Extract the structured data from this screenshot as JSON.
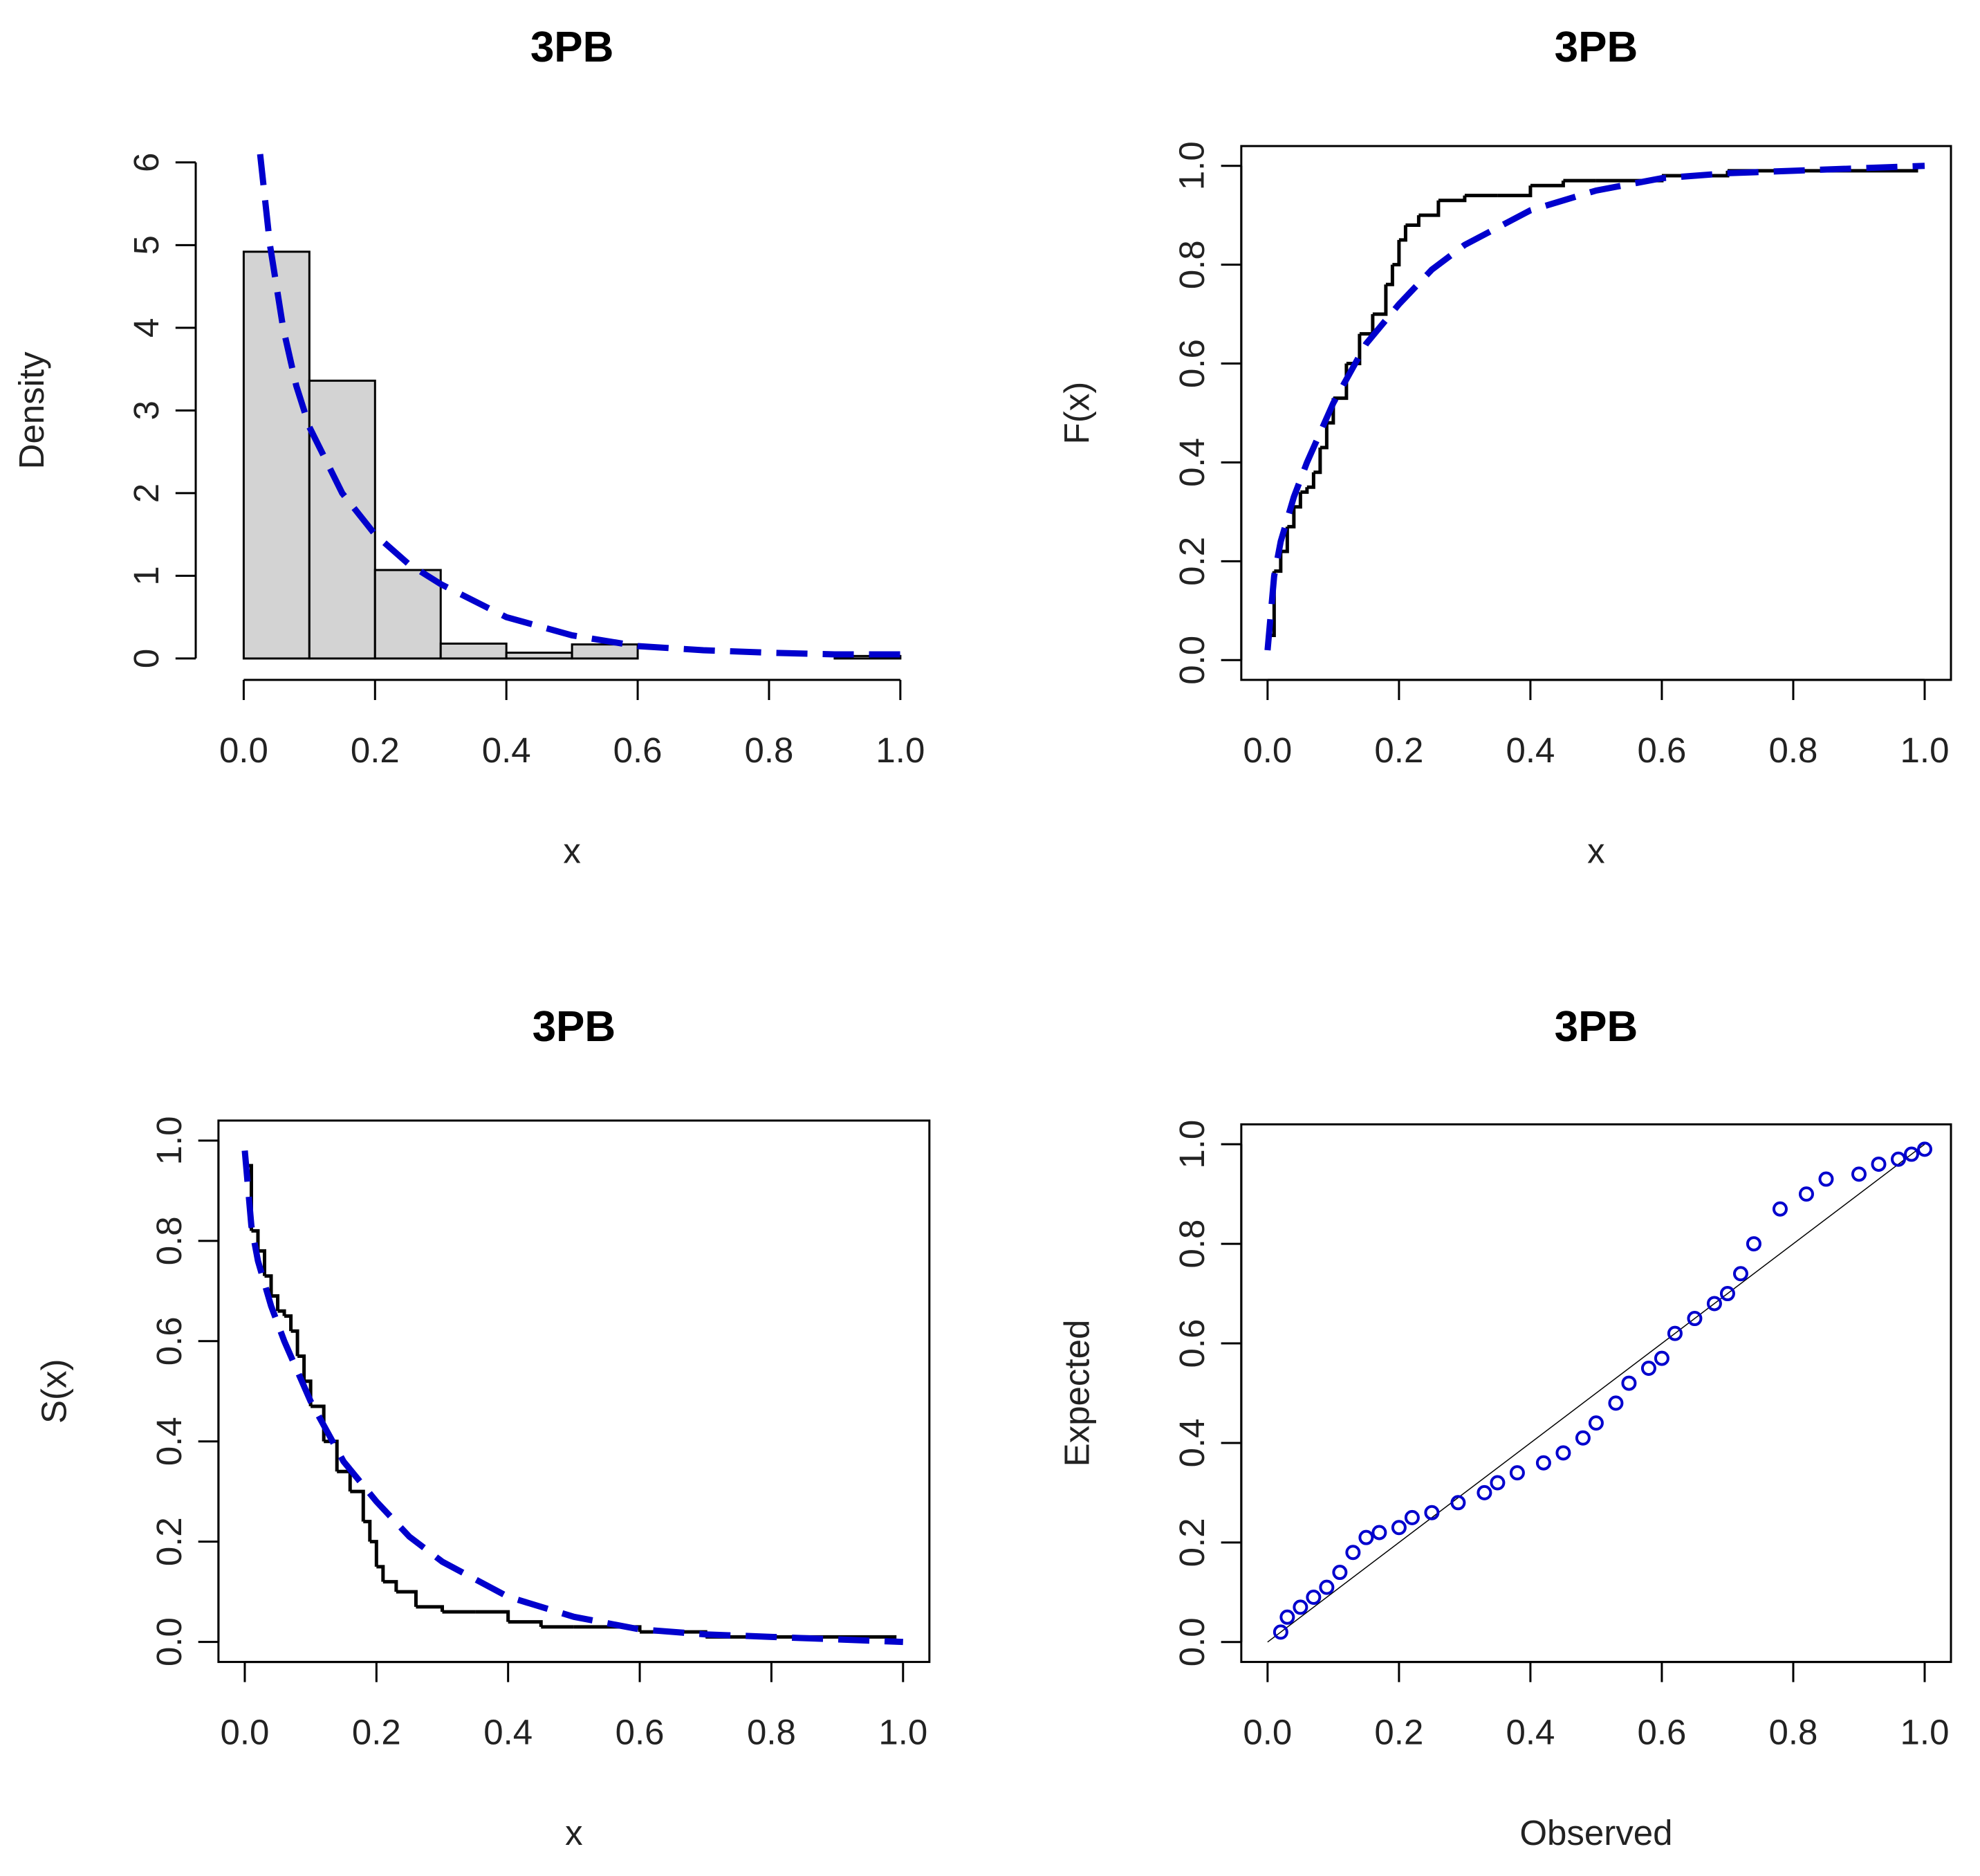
{
  "chart_data": [
    {
      "type": "histogram",
      "title": "3PB",
      "x_label": "x",
      "y_label": "Density",
      "bins": [
        0,
        0.1,
        0.2,
        0.3,
        0.4,
        0.5,
        0.6,
        0.7,
        0.8,
        0.9,
        1.0
      ],
      "values": [
        4.92,
        3.36,
        1.07,
        0.18,
        0.07,
        0.17,
        0,
        0,
        0,
        0.03
      ],
      "color": "#d3d3d3",
      "series": [
        {
          "color": "#0000cd",
          "style": "dashed",
          "x": [
            0.025,
            0.04,
            0.06,
            0.08,
            0.1,
            0.15,
            0.2,
            0.25,
            0.3,
            0.4,
            0.5,
            0.6,
            0.7,
            0.8,
            0.9,
            1.0
          ],
          "values": [
            6.1,
            5.0,
            4.0,
            3.3,
            2.8,
            2.0,
            1.5,
            1.15,
            0.9,
            0.5,
            0.28,
            0.15,
            0.1,
            0.07,
            0.05,
            0.05
          ]
        }
      ],
      "xlim": [
        0,
        1
      ],
      "ylim": [
        0,
        6
      ],
      "xticks": [
        {
          "value": 0,
          "label": "0.0"
        },
        0.2,
        0.4,
        0.6,
        0.8,
        {
          "value": 1,
          "label": "1.0"
        }
      ],
      "yticks": [
        0,
        1,
        2,
        3,
        4,
        5,
        6
      ]
    },
    {
      "type": "line",
      "title": "3PB",
      "x_label": "x",
      "y_label": "F(x)",
      "series": [
        {
          "color": "#000000",
          "style": "step",
          "x": [
            0.005,
            0.01,
            0.02,
            0.03,
            0.04,
            0.05,
            0.06,
            0.07,
            0.08,
            0.09,
            0.1,
            0.12,
            0.14,
            0.16,
            0.18,
            0.19,
            0.2,
            0.21,
            0.23,
            0.26,
            0.3,
            0.35,
            0.4,
            0.45,
            0.5,
            0.6,
            0.7,
            0.8,
            0.99
          ],
          "values": [
            0.05,
            0.18,
            0.22,
            0.27,
            0.31,
            0.34,
            0.35,
            0.38,
            0.43,
            0.48,
            0.53,
            0.6,
            0.66,
            0.7,
            0.76,
            0.8,
            0.85,
            0.88,
            0.9,
            0.93,
            0.94,
            0.94,
            0.96,
            0.97,
            0.97,
            0.98,
            0.99,
            0.99,
            0.99
          ]
        },
        {
          "color": "#0000cd",
          "style": "dashed",
          "x": [
            0,
            0.01,
            0.02,
            0.04,
            0.06,
            0.08,
            0.1,
            0.15,
            0.2,
            0.25,
            0.3,
            0.4,
            0.5,
            0.6,
            0.7,
            0.8,
            0.9,
            1.0
          ],
          "values": [
            0.02,
            0.17,
            0.24,
            0.33,
            0.4,
            0.46,
            0.52,
            0.64,
            0.72,
            0.79,
            0.84,
            0.91,
            0.95,
            0.975,
            0.985,
            0.99,
            0.995,
            1.0
          ]
        }
      ],
      "xlim": [
        -0.04,
        1.04
      ],
      "ylim": [
        -0.04,
        1.04
      ],
      "xticks": [
        {
          "value": 0,
          "label": "0.0"
        },
        0.2,
        0.4,
        0.6,
        0.8,
        {
          "value": 1,
          "label": "1.0"
        }
      ],
      "yticks": [
        {
          "value": 0,
          "label": "0.0"
        },
        0.2,
        0.4,
        0.6,
        0.8,
        {
          "value": 1,
          "label": "1.0"
        }
      ]
    },
    {
      "type": "line",
      "title": "3PB",
      "x_label": "x",
      "y_label": "S(x)",
      "series": [
        {
          "color": "#000000",
          "style": "step",
          "x": [
            0.005,
            0.01,
            0.02,
            0.03,
            0.04,
            0.05,
            0.06,
            0.07,
            0.08,
            0.09,
            0.1,
            0.12,
            0.14,
            0.16,
            0.18,
            0.19,
            0.2,
            0.21,
            0.23,
            0.26,
            0.3,
            0.35,
            0.4,
            0.45,
            0.5,
            0.6,
            0.7,
            0.8,
            0.99
          ],
          "values": [
            0.95,
            0.82,
            0.78,
            0.73,
            0.69,
            0.66,
            0.65,
            0.62,
            0.57,
            0.52,
            0.47,
            0.4,
            0.34,
            0.3,
            0.24,
            0.2,
            0.15,
            0.12,
            0.1,
            0.07,
            0.06,
            0.06,
            0.04,
            0.03,
            0.03,
            0.02,
            0.01,
            0.01,
            0.01
          ]
        },
        {
          "color": "#0000cd",
          "style": "dashed",
          "x": [
            0,
            0.01,
            0.02,
            0.04,
            0.06,
            0.08,
            0.1,
            0.15,
            0.2,
            0.25,
            0.3,
            0.4,
            0.5,
            0.6,
            0.7,
            0.8,
            0.9,
            1.0
          ],
          "values": [
            0.98,
            0.83,
            0.76,
            0.67,
            0.6,
            0.54,
            0.48,
            0.36,
            0.28,
            0.21,
            0.16,
            0.09,
            0.05,
            0.025,
            0.015,
            0.01,
            0.005,
            0.0
          ]
        }
      ],
      "xlim": [
        -0.04,
        1.04
      ],
      "ylim": [
        -0.04,
        1.04
      ],
      "xticks": [
        {
          "value": 0,
          "label": "0.0"
        },
        0.2,
        0.4,
        0.6,
        0.8,
        {
          "value": 1,
          "label": "1.0"
        }
      ],
      "yticks": [
        {
          "value": 0,
          "label": "0.0"
        },
        0.2,
        0.4,
        0.6,
        0.8,
        {
          "value": 1,
          "label": "1.0"
        }
      ]
    },
    {
      "type": "scatter",
      "title": "3PB",
      "x_label": "Observed",
      "y_label": "Expected",
      "color": "#0000cd",
      "reference_line": true,
      "x": [
        0.02,
        0.03,
        0.05,
        0.07,
        0.09,
        0.11,
        0.13,
        0.15,
        0.17,
        0.2,
        0.22,
        0.25,
        0.29,
        0.33,
        0.35,
        0.38,
        0.42,
        0.45,
        0.48,
        0.5,
        0.53,
        0.55,
        0.58,
        0.6,
        0.62,
        0.65,
        0.68,
        0.7,
        0.72,
        0.74,
        0.78,
        0.82,
        0.85,
        0.9,
        0.93,
        0.96,
        0.98,
        1.0
      ],
      "values": [
        0.02,
        0.05,
        0.07,
        0.09,
        0.11,
        0.14,
        0.18,
        0.21,
        0.22,
        0.23,
        0.25,
        0.26,
        0.28,
        0.3,
        0.32,
        0.34,
        0.36,
        0.38,
        0.41,
        0.44,
        0.48,
        0.52,
        0.55,
        0.57,
        0.62,
        0.65,
        0.68,
        0.7,
        0.74,
        0.8,
        0.87,
        0.9,
        0.93,
        0.94,
        0.96,
        0.97,
        0.98,
        0.99
      ],
      "xlim": [
        -0.04,
        1.04
      ],
      "ylim": [
        -0.04,
        1.04
      ],
      "xticks": [
        {
          "value": 0,
          "label": "0.0"
        },
        0.2,
        0.4,
        0.6,
        0.8,
        {
          "value": 1,
          "label": "1.0"
        }
      ],
      "yticks": [
        {
          "value": 0,
          "label": "0.0"
        },
        0.2,
        0.4,
        0.6,
        0.8,
        {
          "value": 1,
          "label": "1.0"
        }
      ]
    }
  ]
}
